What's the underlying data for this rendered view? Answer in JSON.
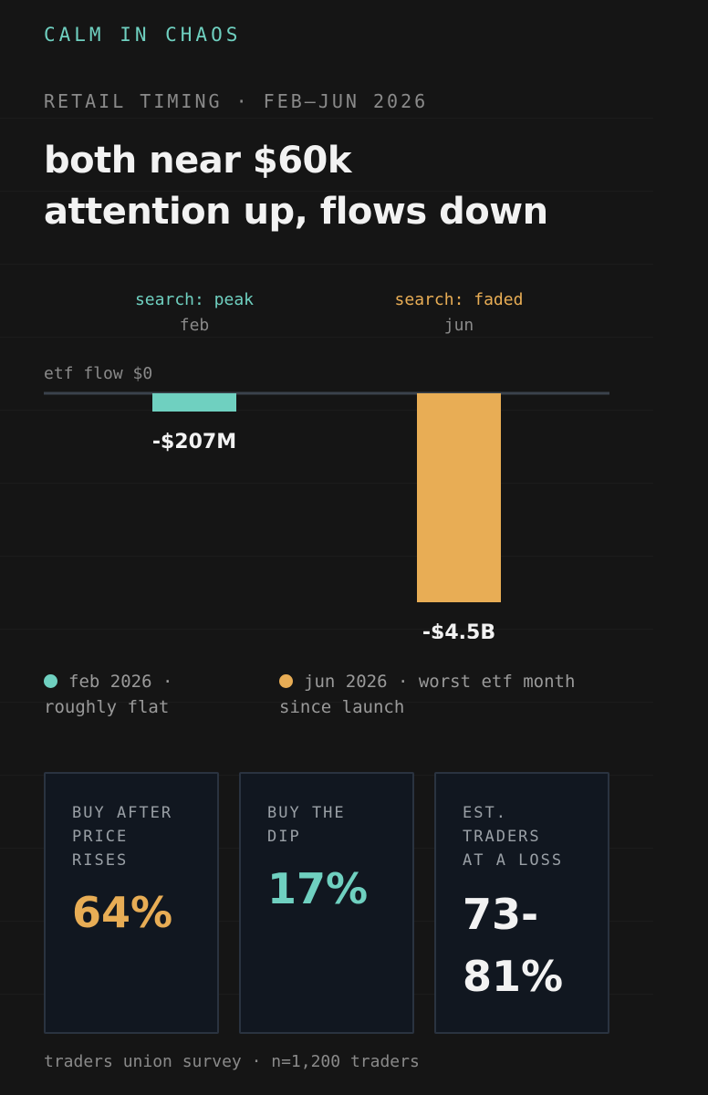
{
  "brand": "CALM IN CHAOS",
  "subtitle": "RETAIL TIMING · FEB–JUN 2026",
  "headline": [
    "both near $60k",
    "attention up, flows down"
  ],
  "colors": {
    "teal": "#6fd0c0",
    "orange": "#e8ad55",
    "background": "#151515",
    "card": "#111720"
  },
  "chart_data": {
    "type": "bar",
    "baseline_label": "etf flow $0",
    "categories": [
      "feb",
      "jun"
    ],
    "annotations": [
      "search: peak",
      "search: faded"
    ],
    "values": [
      -207,
      -4500
    ],
    "unit": "$M",
    "value_labels": [
      "-$207M",
      "-$4.5B"
    ],
    "colors": [
      "#6fd0c0",
      "#e8ad55"
    ],
    "ylim": [
      -4500,
      0
    ]
  },
  "legend": [
    {
      "lines": [
        "feb 2026 ·",
        "roughly flat"
      ],
      "color": "#6fd0c0"
    },
    {
      "lines": [
        "jun 2026 · worst etf month",
        "since launch"
      ],
      "color": "#e8ad55"
    }
  ],
  "stats": [
    {
      "label": [
        "BUY AFTER",
        "PRICE",
        "RISES"
      ],
      "value": [
        "64%"
      ],
      "color": "#e8ad55"
    },
    {
      "label": [
        "BUY THE",
        "DIP"
      ],
      "value": [
        "17%"
      ],
      "color": "#6fd0c0"
    },
    {
      "label": [
        "EST.",
        "TRADERS",
        "AT A LOSS"
      ],
      "value": [
        "73-",
        "81%"
      ],
      "color": "#f2f2f2"
    }
  ],
  "footer": "traders union survey · n=1,200 traders"
}
